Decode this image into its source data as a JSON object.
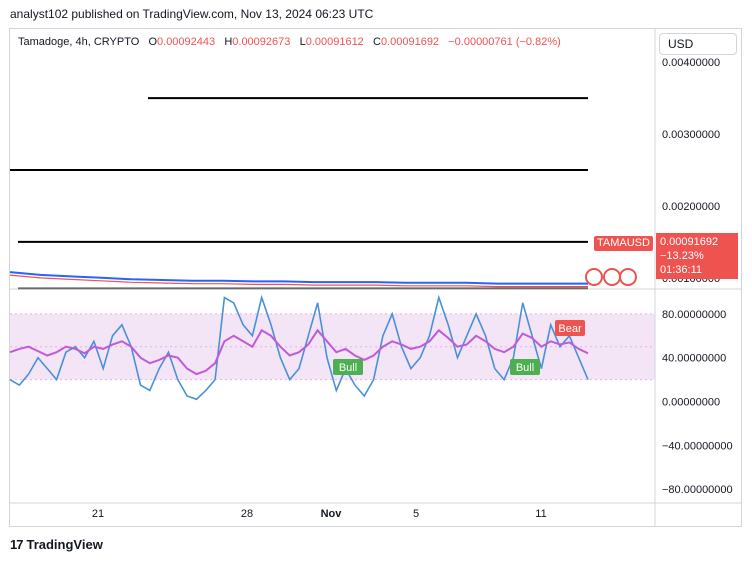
{
  "header": {
    "publisher_line": "analyst102 published on TradingView.com, Nov 13, 2024 06:23 UTC"
  },
  "legend": {
    "symbol": "Tamadoge, 4h, CRYPTO",
    "open_label": "O",
    "open": "0.00092443",
    "high_label": "H",
    "high": "0.00092673",
    "low_label": "L",
    "low": "0.00091612",
    "close_label": "C",
    "close": "0.00091692",
    "change": "−0.00000761 (−0.82%)"
  },
  "currency": "USD",
  "price_panel": {
    "ticker_badge": "TAMAUSD",
    "last_price": "0.00091692",
    "change_pct": "−13.23%",
    "countdown": "01:36:11",
    "axis_labels": [
      "0.00400000",
      "0.00300000",
      "0.00200000",
      "0.00100000"
    ]
  },
  "oscillator_panel": {
    "axis_labels": [
      "80.00000000",
      "40.00000000",
      "0.00000000",
      "−40.00000000",
      "−80.00000000"
    ],
    "signals": [
      {
        "label": "Bull",
        "color": "#4caf50"
      },
      {
        "label": "Bull",
        "color": "#4caf50"
      },
      {
        "label": "Bear",
        "color": "#ef5350"
      }
    ]
  },
  "x_axis": {
    "labels": [
      "21",
      "28",
      "Nov",
      "5",
      "11"
    ]
  },
  "footer": {
    "logo_text": "17",
    "brand": "TradingView"
  },
  "colors": {
    "bearish": "#ef5350",
    "bullish": "#4caf50",
    "stoch_k": "#4a90d9",
    "stoch_d": "#c05ad8",
    "band_fill": "#f3e5f5"
  },
  "chart_data": [
    {
      "type": "line",
      "title": "Tamadoge, 4h, CRYPTO",
      "ylim": [
        0.0009,
        0.0041
      ],
      "horizontal_levels": [
        0.0035,
        0.0025,
        0.0015,
        0.00085
      ],
      "series": [
        {
          "name": "TAMAUSD",
          "values": [
            0.00108,
            0.00104,
            0.00102,
            0.001,
            0.00098,
            0.00097,
            0.00096,
            0.00096,
            0.00095,
            0.00095,
            0.00094,
            0.00094,
            0.00094,
            0.00093,
            0.00093,
            0.00093,
            0.00092,
            0.00092,
            0.00092,
            0.00092
          ]
        }
      ]
    },
    {
      "type": "line",
      "ylim": [
        -90,
        100
      ],
      "band": [
        20,
        80
      ],
      "midline": 50,
      "series": [
        {
          "name": "",
          "values": [
            20,
            15,
            25,
            40,
            30,
            20,
            45,
            50,
            40,
            55,
            30,
            60,
            70,
            50,
            15,
            10,
            30,
            45,
            20,
            5,
            2,
            10,
            20,
            95,
            90,
            70,
            60,
            95,
            70,
            40,
            20,
            30,
            60,
            90,
            40,
            10,
            30,
            15,
            5,
            20,
            60,
            80,
            50,
            30,
            40,
            60,
            95,
            70,
            40,
            60,
            80,
            60,
            30,
            20,
            40,
            90,
            60,
            30,
            70,
            50,
            60,
            40,
            20
          ]
        },
        {
          "name": "",
          "values": [
            45,
            48,
            50,
            46,
            42,
            45,
            50,
            48,
            44,
            50,
            48,
            52,
            55,
            50,
            40,
            35,
            38,
            42,
            40,
            30,
            25,
            28,
            35,
            55,
            60,
            55,
            50,
            65,
            60,
            50,
            42,
            45,
            52,
            65,
            55,
            45,
            48,
            42,
            38,
            42,
            50,
            55,
            52,
            48,
            50,
            55,
            65,
            58,
            50,
            52,
            60,
            55,
            48,
            45,
            50,
            62,
            58,
            50,
            55,
            52,
            54,
            48,
            44
          ]
        }
      ]
    }
  ]
}
